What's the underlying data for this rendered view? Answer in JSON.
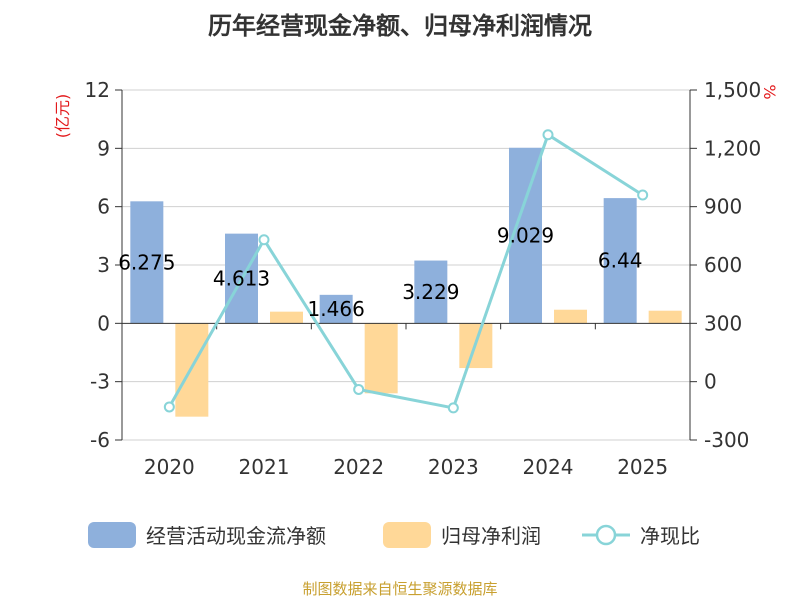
{
  "chart_data": {
    "type": "bar",
    "title": "历年经营现金净额、归母净利润情况",
    "categories": [
      "2020",
      "2021",
      "2022",
      "2023",
      "2024",
      "2025"
    ],
    "series": [
      {
        "name": "经营活动现金流净额",
        "type": "bar",
        "axis": "left",
        "values": [
          6.275,
          4.613,
          1.466,
          3.229,
          9.029,
          6.44
        ],
        "labels": [
          "6.275",
          "4.613",
          "1.466",
          "3.229",
          "9.029",
          "6.44"
        ],
        "color": "#8eb0dc"
      },
      {
        "name": "归母净利润",
        "type": "bar",
        "axis": "left",
        "values": [
          -4.8,
          0.6,
          -3.6,
          -2.3,
          0.7,
          0.65
        ],
        "color": "#ffd898"
      },
      {
        "name": "净现比",
        "type": "line",
        "axis": "right",
        "values": [
          -130,
          730,
          -40,
          -135,
          1270,
          960
        ],
        "color": "#88d4d8"
      }
    ],
    "left_axis": {
      "unit": "(亿元)",
      "min": -6,
      "max": 12,
      "ticks": [
        12,
        9,
        6,
        3,
        0,
        -3,
        -6
      ],
      "tick_labels": [
        "12",
        "9",
        "6",
        "3",
        "0",
        "-3",
        "-6"
      ]
    },
    "right_axis": {
      "unit": "%",
      "min": -300,
      "max": 1500,
      "ticks": [
        1500,
        1200,
        900,
        600,
        300,
        0,
        -300
      ],
      "tick_labels": [
        "1,500",
        "1,200",
        "900",
        "600",
        "300",
        "0",
        "-300"
      ]
    },
    "grid": true,
    "legend_position": "bottom"
  },
  "source": "制图数据来自恒生聚源数据库"
}
